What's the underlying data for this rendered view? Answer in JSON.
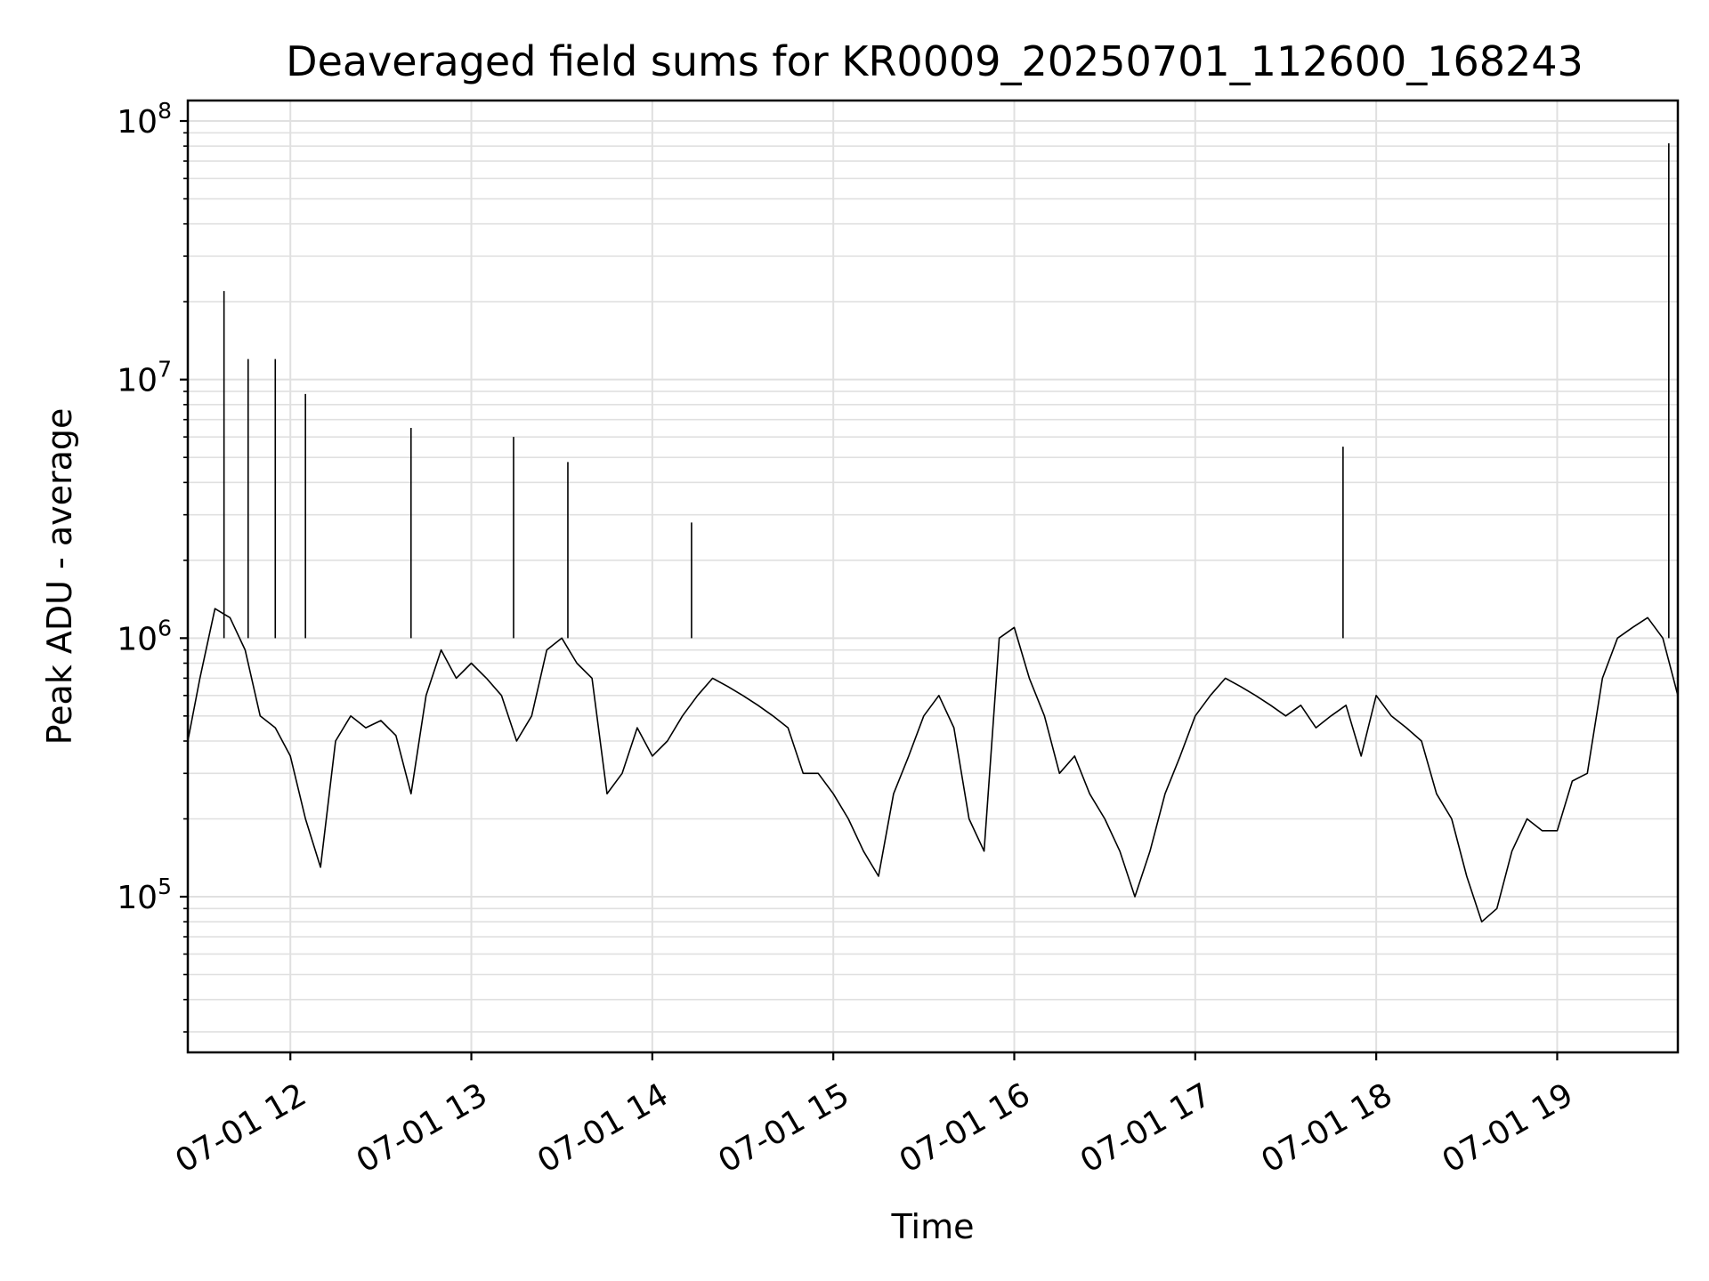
{
  "chart_data": {
    "type": "line",
    "title": "Deaveraged field sums for KR0009_20250701_112600_168243",
    "xlabel": "Time",
    "ylabel": "Peak ADU - average",
    "yscale": "log",
    "ylim": [
      25000,
      120000000
    ],
    "xlim": [
      "2025-07-01 11:26",
      "2025-07-01 19:40"
    ],
    "grid": true,
    "line_color": "#000000",
    "grid_color": "#e0e0e0",
    "x_ticks": [
      {
        "value": "2025-07-01 12:00",
        "label": "07-01 12"
      },
      {
        "value": "2025-07-01 13:00",
        "label": "07-01 13"
      },
      {
        "value": "2025-07-01 14:00",
        "label": "07-01 14"
      },
      {
        "value": "2025-07-01 15:00",
        "label": "07-01 15"
      },
      {
        "value": "2025-07-01 16:00",
        "label": "07-01 16"
      },
      {
        "value": "2025-07-01 17:00",
        "label": "07-01 17"
      },
      {
        "value": "2025-07-01 18:00",
        "label": "07-01 18"
      },
      {
        "value": "2025-07-01 19:00",
        "label": "07-01 19"
      }
    ],
    "y_ticks": [
      {
        "value": 100000,
        "base": "10",
        "exp": "5"
      },
      {
        "value": 1000000,
        "base": "10",
        "exp": "6"
      },
      {
        "value": 10000000,
        "base": "10",
        "exp": "7"
      },
      {
        "value": 100000000,
        "base": "10",
        "exp": "8"
      }
    ],
    "series": [
      {
        "x": [
          "2025-07-01 11:26",
          "2025-07-01 11:30",
          "2025-07-01 11:35",
          "2025-07-01 11:40",
          "2025-07-01 11:45",
          "2025-07-01 11:50",
          "2025-07-01 11:55",
          "2025-07-01 12:00",
          "2025-07-01 12:05",
          "2025-07-01 12:10",
          "2025-07-01 12:15",
          "2025-07-01 12:20",
          "2025-07-01 12:25",
          "2025-07-01 12:30",
          "2025-07-01 12:35",
          "2025-07-01 12:40",
          "2025-07-01 12:45",
          "2025-07-01 12:50",
          "2025-07-01 12:55",
          "2025-07-01 13:00",
          "2025-07-01 13:05",
          "2025-07-01 13:10",
          "2025-07-01 13:15",
          "2025-07-01 13:20",
          "2025-07-01 13:25",
          "2025-07-01 13:30",
          "2025-07-01 13:35",
          "2025-07-01 13:40",
          "2025-07-01 13:45",
          "2025-07-01 13:50",
          "2025-07-01 13:55",
          "2025-07-01 14:00",
          "2025-07-01 14:05",
          "2025-07-01 14:10",
          "2025-07-01 14:15",
          "2025-07-01 14:20",
          "2025-07-01 14:25",
          "2025-07-01 14:30",
          "2025-07-01 14:35",
          "2025-07-01 14:40",
          "2025-07-01 14:45",
          "2025-07-01 14:50",
          "2025-07-01 14:55",
          "2025-07-01 15:00",
          "2025-07-01 15:05",
          "2025-07-01 15:10",
          "2025-07-01 15:15",
          "2025-07-01 15:20",
          "2025-07-01 15:25",
          "2025-07-01 15:30",
          "2025-07-01 15:35",
          "2025-07-01 15:40",
          "2025-07-01 15:45",
          "2025-07-01 15:50",
          "2025-07-01 15:55",
          "2025-07-01 16:00",
          "2025-07-01 16:05",
          "2025-07-01 16:10",
          "2025-07-01 16:15",
          "2025-07-01 16:20",
          "2025-07-01 16:25",
          "2025-07-01 16:30",
          "2025-07-01 16:35",
          "2025-07-01 16:40",
          "2025-07-01 16:45",
          "2025-07-01 16:50",
          "2025-07-01 16:55",
          "2025-07-01 17:00",
          "2025-07-01 17:05",
          "2025-07-01 17:10",
          "2025-07-01 17:15",
          "2025-07-01 17:20",
          "2025-07-01 17:25",
          "2025-07-01 17:30",
          "2025-07-01 17:35",
          "2025-07-01 17:40",
          "2025-07-01 17:45",
          "2025-07-01 17:50",
          "2025-07-01 17:55",
          "2025-07-01 18:00",
          "2025-07-01 18:05",
          "2025-07-01 18:10",
          "2025-07-01 18:15",
          "2025-07-01 18:20",
          "2025-07-01 18:25",
          "2025-07-01 18:30",
          "2025-07-01 18:35",
          "2025-07-01 18:40",
          "2025-07-01 18:45",
          "2025-07-01 18:50",
          "2025-07-01 18:55",
          "2025-07-01 19:00",
          "2025-07-01 19:05",
          "2025-07-01 19:10",
          "2025-07-01 19:15",
          "2025-07-01 19:20",
          "2025-07-01 19:25",
          "2025-07-01 19:30",
          "2025-07-01 19:35",
          "2025-07-01 19:40"
        ],
        "y": [
          400000,
          700000,
          1300000,
          1200000,
          900000,
          500000,
          450000,
          350000,
          200000,
          130000,
          400000,
          500000,
          450000,
          480000,
          420000,
          250000,
          600000,
          900000,
          700000,
          800000,
          700000,
          600000,
          400000,
          500000,
          900000,
          1000000,
          800000,
          700000,
          250000,
          300000,
          450000,
          350000,
          400000,
          500000,
          600000,
          700000,
          650000,
          600000,
          550000,
          500000,
          450000,
          300000,
          300000,
          250000,
          200000,
          150000,
          120000,
          250000,
          350000,
          500000,
          600000,
          450000,
          200000,
          150000,
          1000000,
          1100000,
          700000,
          500000,
          300000,
          350000,
          250000,
          200000,
          150000,
          100000,
          150000,
          250000,
          350000,
          500000,
          600000,
          700000,
          650000,
          600000,
          550000,
          500000,
          550000,
          450000,
          500000,
          550000,
          350000,
          600000,
          500000,
          450000,
          400000,
          250000,
          200000,
          120000,
          80000,
          90000,
          150000,
          200000,
          180000,
          180000,
          280000,
          300000,
          700000,
          1000000,
          1100000,
          1200000,
          1000000,
          600000
        ]
      }
    ],
    "spikes": [
      {
        "x": "2025-07-01 11:38",
        "y": 22000000
      },
      {
        "x": "2025-07-01 11:46",
        "y": 12000000
      },
      {
        "x": "2025-07-01 11:55",
        "y": 12000000
      },
      {
        "x": "2025-07-01 12:05",
        "y": 8800000
      },
      {
        "x": "2025-07-01 12:40",
        "y": 6500000
      },
      {
        "x": "2025-07-01 13:14",
        "y": 6000000
      },
      {
        "x": "2025-07-01 13:32",
        "y": 4800000
      },
      {
        "x": "2025-07-01 14:13",
        "y": 2800000
      },
      {
        "x": "2025-07-01 17:49",
        "y": 5500000
      },
      {
        "x": "2025-07-01 19:37",
        "y": 82000000
      }
    ]
  }
}
